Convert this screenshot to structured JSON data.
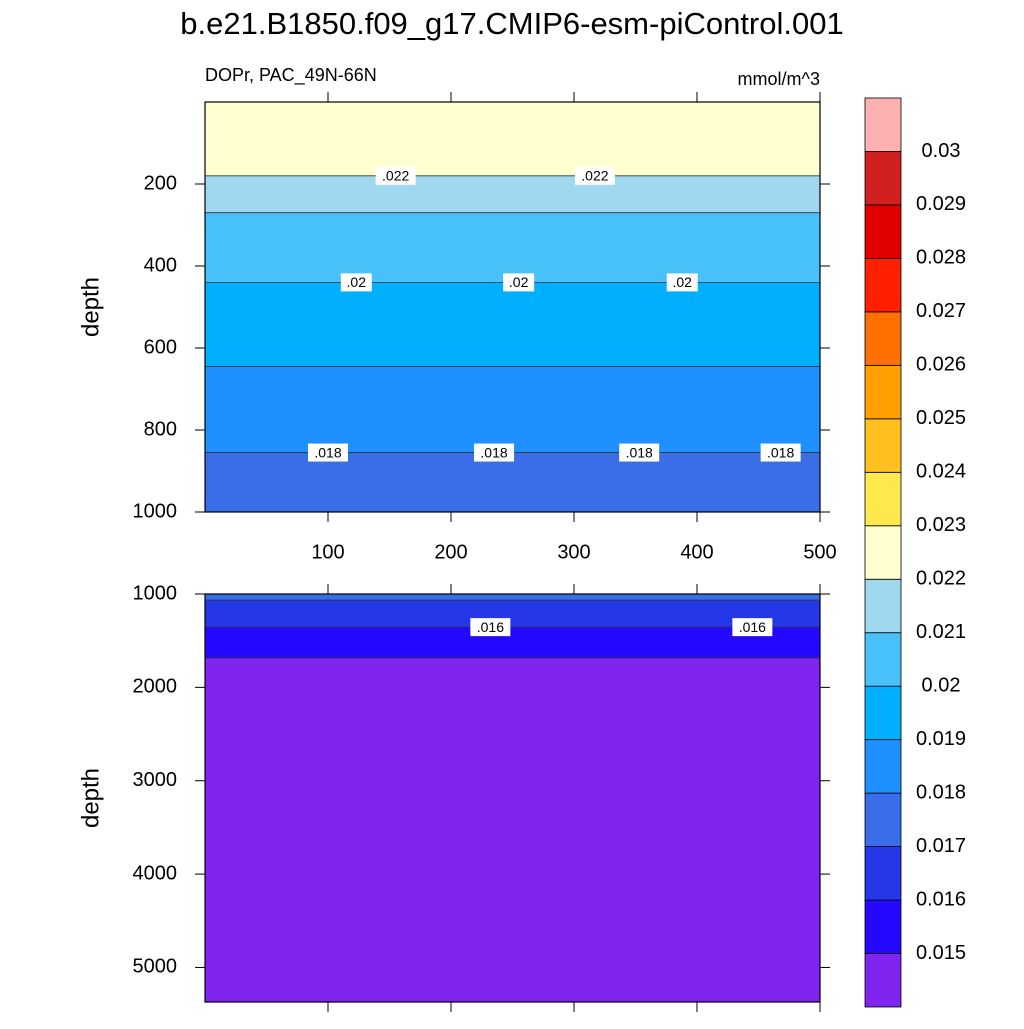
{
  "title": "b.e21.B1850.f09_g17.CMIP6-esm-piControl.001",
  "chart_data": [
    {
      "type": "contour",
      "subtitle_left": "DOPr, PAC_49N-66N",
      "subtitle_right": "mmol/m^3",
      "ylabel": "depth",
      "xlim": [
        0,
        500
      ],
      "xticks": [
        100,
        200,
        300,
        400,
        500
      ],
      "show_xtick_labels": true,
      "ylim": [
        0,
        1000
      ],
      "yticks": [
        200,
        400,
        600,
        800,
        1000
      ],
      "y_reversed": true,
      "contour_levels": [
        0.022,
        0.021,
        0.02,
        0.019,
        0.018
      ],
      "contour_depths": [
        180,
        270,
        440,
        645,
        855
      ],
      "line_labels": [
        {
          "level": 0.022,
          "x": 155,
          "label": ".022"
        },
        {
          "level": 0.022,
          "x": 317,
          "label": ".022"
        },
        {
          "level": 0.02,
          "x": 123,
          "label": ".02"
        },
        {
          "level": 0.02,
          "x": 255,
          "label": ".02"
        },
        {
          "level": 0.02,
          "x": 388,
          "label": ".02"
        },
        {
          "level": 0.018,
          "x": 100,
          "label": ".018"
        },
        {
          "level": 0.018,
          "x": 235,
          "label": ".018"
        },
        {
          "level": 0.018,
          "x": 353,
          "label": ".018"
        },
        {
          "level": 0.018,
          "x": 468,
          "label": ".018"
        }
      ]
    },
    {
      "type": "contour",
      "ylabel": "depth",
      "xlim": [
        0,
        500
      ],
      "xticks": [
        100,
        200,
        300,
        400,
        500
      ],
      "show_xtick_labels": false,
      "ylim": [
        1000,
        5370
      ],
      "yticks": [
        1000,
        2000,
        3000,
        4000,
        5000
      ],
      "y_reversed": true,
      "contour_levels": [
        0.017,
        0.016,
        0.015
      ],
      "contour_depths": [
        1065,
        1355,
        1685
      ],
      "line_labels": [
        {
          "level": 0.016,
          "x": 232,
          "label": ".016"
        },
        {
          "level": 0.016,
          "x": 445,
          "label": ".016"
        }
      ]
    }
  ],
  "colorbar": {
    "levels": [
      0.015,
      0.016,
      0.017,
      0.018,
      0.019,
      0.02,
      0.021,
      0.022,
      0.023,
      0.024,
      0.025,
      0.026,
      0.027,
      0.028,
      0.029,
      0.03
    ],
    "colors": [
      "#8024f0",
      "#2408ff",
      "#2438e8",
      "#3a6ee8",
      "#1e90ff",
      "#00b0ff",
      "#48c0f8",
      "#a0d8f0",
      "#ffffd0",
      "#ffe84e",
      "#ffc020",
      "#ffa000",
      "#ff7000",
      "#ff2000",
      "#e00000",
      "#d02020",
      "#ffb0b0"
    ]
  }
}
